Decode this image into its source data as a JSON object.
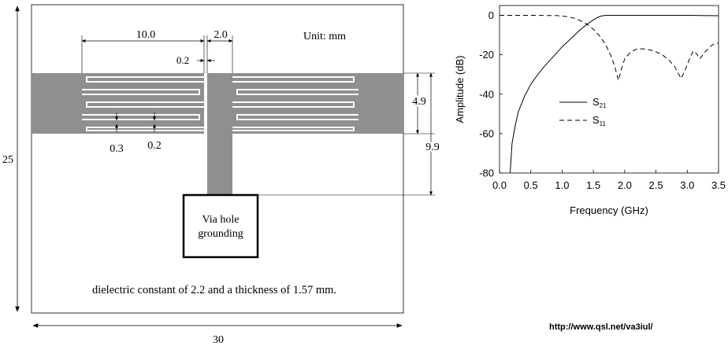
{
  "diagram": {
    "dim_width_top": "10.0",
    "dim_stub_width": "2.0",
    "dim_gap": "0.2",
    "unit": "Unit: mm",
    "dim_height_inner": "4.9",
    "dim_height_outer": "9.9",
    "dim_finger_width": "0.3",
    "dim_finger_gap": "0.2",
    "dim_board_height": "25",
    "dim_board_width": "30",
    "via_line1": "Via hole",
    "via_line2": "grounding",
    "caption": "dielectric constant of 2.2 and a thickness of 1.57 mm.",
    "url": "http://www.qsl.net/va3iul/"
  },
  "chart_data": {
    "type": "line",
    "xlabel": "Frequency (GHz)",
    "ylabel": "Amplitude (dB)",
    "xlim": [
      0.0,
      3.5
    ],
    "ylim": [
      -80,
      5
    ],
    "x_ticks": [
      "0.0",
      "0.5",
      "1.0",
      "1.5",
      "2.0",
      "2.5",
      "3.0",
      "3.5"
    ],
    "x_tick_values": [
      0,
      0.5,
      1,
      1.5,
      2,
      2.5,
      3,
      3.5
    ],
    "y_ticks": [
      "0",
      "-20",
      "-40",
      "-60",
      "-80"
    ],
    "y_tick_values": [
      0,
      -20,
      -40,
      -60,
      -80
    ],
    "grid": false,
    "series": [
      {
        "name": "S21",
        "label_main": "S",
        "label_sub": "21",
        "color": "#000000",
        "dash": "solid",
        "x": [
          0.17,
          0.2,
          0.25,
          0.3,
          0.4,
          0.5,
          0.6,
          0.7,
          0.8,
          0.9,
          1.0,
          1.1,
          1.2,
          1.3,
          1.4,
          1.5,
          1.55,
          1.6,
          1.65,
          1.7,
          1.75,
          1.8,
          2.0,
          2.5,
          3.0,
          3.5
        ],
        "y": [
          -80,
          -65,
          -56,
          -49,
          -41,
          -35,
          -30.5,
          -26.5,
          -23,
          -19.5,
          -16,
          -13,
          -10,
          -7,
          -4.5,
          -2.3,
          -1.3,
          -0.6,
          -0.2,
          0,
          0,
          0,
          0,
          0,
          0,
          -0.2
        ]
      },
      {
        "name": "S11",
        "label_main": "S",
        "label_sub": "11",
        "color": "#000000",
        "dash": "dashed",
        "x": [
          0.0,
          0.5,
          0.9,
          1.0,
          1.1,
          1.2,
          1.3,
          1.4,
          1.5,
          1.6,
          1.7,
          1.8,
          1.85,
          1.9,
          1.95,
          2.0,
          2.1,
          2.2,
          2.3,
          2.4,
          2.5,
          2.6,
          2.7,
          2.8,
          2.85,
          2.9,
          2.95,
          3.0,
          3.05,
          3.1,
          3.15,
          3.2,
          3.3,
          3.4,
          3.5
        ],
        "y": [
          0,
          0,
          -0.1,
          -0.3,
          -0.8,
          -1.5,
          -2.8,
          -4.5,
          -7,
          -10.5,
          -15,
          -22,
          -27,
          -33,
          -27,
          -22,
          -18.5,
          -17,
          -17,
          -17.5,
          -18.5,
          -20,
          -22.5,
          -26,
          -29,
          -32,
          -29,
          -25,
          -21,
          -18,
          -19.5,
          -22,
          -18,
          -15,
          -14
        ]
      }
    ]
  }
}
